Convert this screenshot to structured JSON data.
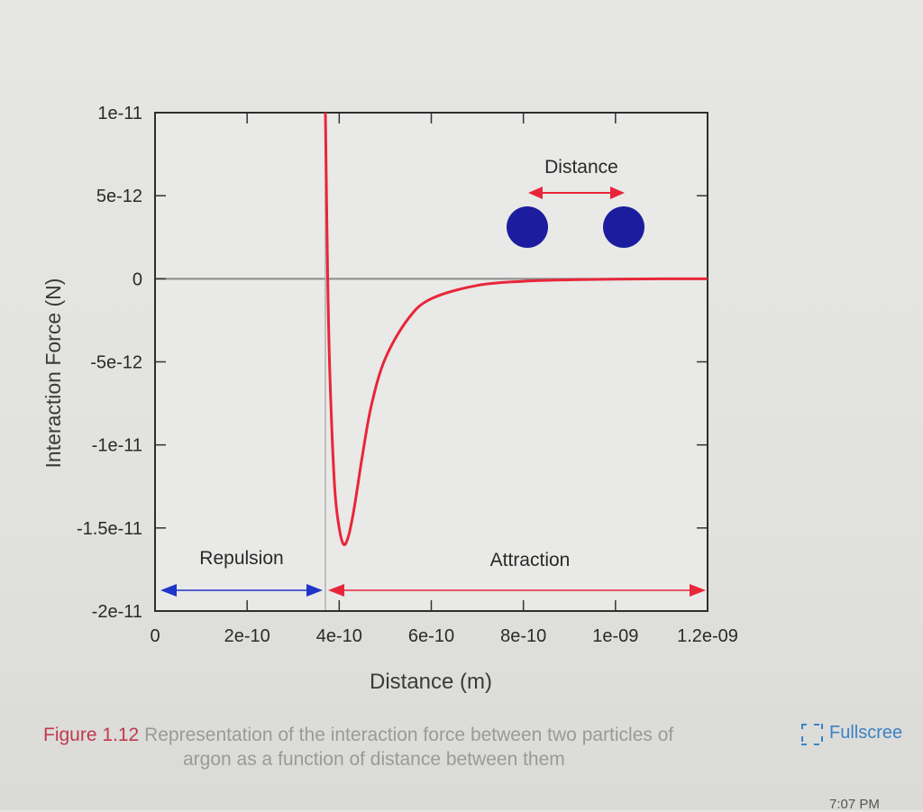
{
  "chart_data": {
    "type": "line",
    "title": "",
    "xlabel": "Distance (m)",
    "ylabel": "Interaction Force (N)",
    "xlim": [
      0,
      1.2e-09
    ],
    "ylim": [
      -2e-11,
      1e-11
    ],
    "x_ticks": [
      0,
      2e-10,
      4e-10,
      6e-10,
      8e-10,
      1e-09,
      1.2e-09
    ],
    "x_tick_labels": [
      "0",
      "2e-10",
      "4e-10",
      "6e-10",
      "8e-10",
      "1e-09",
      "1.2e-09"
    ],
    "y_ticks": [
      1e-11,
      5e-12,
      0,
      -5e-12,
      -1e-11,
      -1.5e-11,
      -2e-11
    ],
    "y_tick_labels": [
      "1e-11",
      "5e-12",
      "0",
      "-5e-12",
      "-1e-11",
      "-1.5e-11",
      "-2e-11"
    ],
    "grid": false,
    "series": [
      {
        "color": "#e8263a",
        "x": [
          3.7e-10,
          3.75e-10,
          3.8e-10,
          3.9e-10,
          4e-10,
          4.1e-10,
          4.2e-10,
          4.3e-10,
          4.4e-10,
          4.5e-10,
          4.7e-10,
          5e-10,
          5.5e-10,
          6e-10,
          7e-10,
          8e-10,
          9e-10,
          1e-09,
          1.1e-09,
          1.2e-09
        ],
        "y": [
          1e-11,
          0,
          -6e-12,
          -1.25e-11,
          -1.5e-11,
          -1.6e-11,
          -1.55e-11,
          -1.42e-11,
          -1.25e-11,
          -1.07e-11,
          -7.6e-12,
          -4.8e-12,
          -2.4e-12,
          -1.2e-12,
          -4e-13,
          -1.5e-13,
          -6e-14,
          -2e-14,
          -5e-15,
          0
        ]
      }
    ],
    "reference_lines": [
      {
        "axis": "y",
        "value": 0,
        "color": "#8a8a8a"
      },
      {
        "axis": "x",
        "value": 3.7e-10,
        "color": "#b0b0b0"
      }
    ],
    "annotations": {
      "repulsion": {
        "text": "Repulsion",
        "x_from": 0,
        "x_to": 3.7e-10,
        "color": "#1f35c8"
      },
      "attraction": {
        "text": "Attraction",
        "x_from": 3.7e-10,
        "x_to": 1.2e-09,
        "color": "#e8263a"
      },
      "distance_label": "Distance",
      "particle_color": "#1c1c9e"
    }
  },
  "caption": {
    "figure_label": "Figure 1.12",
    "line1": " Representation of the interaction force between two particles of",
    "line2": "argon as a function of distance between them"
  },
  "fullscreen_label": "Fullscree",
  "time": "7:07 PM"
}
